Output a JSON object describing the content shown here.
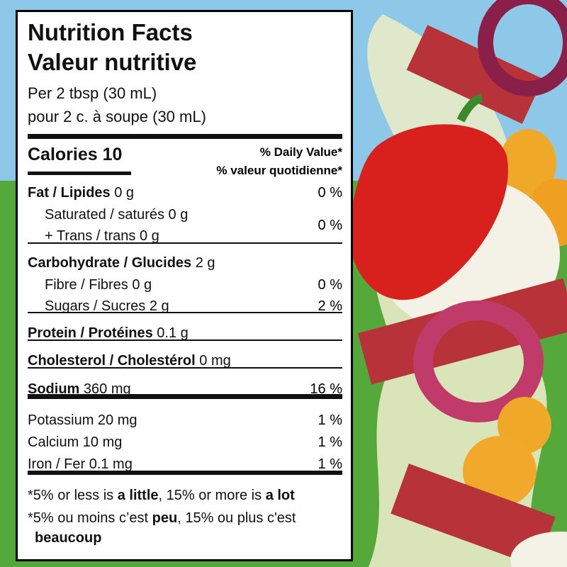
{
  "header": {
    "title": [
      "Nutrition Facts",
      "Valeur nutritive"
    ],
    "serving": [
      "Per 2 tbsp (30 mL)",
      "pour 2 c. à soupe (30 mL)"
    ]
  },
  "calories": {
    "label": "Calories 10",
    "daily_value": [
      "% Daily Value*",
      "% valeur quotidienne*"
    ]
  },
  "rows": [
    {
      "name": "Fat / Lipides",
      "amount": "0 g",
      "dv": "0 %"
    },
    {
      "sub": [
        "Saturated / saturés 0 g",
        "+ Trans / trans 0 g"
      ],
      "dv": "0 %"
    },
    {
      "name": "Carbohydrate / Glucides",
      "amount": "2 g"
    },
    {
      "sub": [
        "Fibre / Fibres 0 g"
      ],
      "dv": "0 %"
    },
    {
      "sub": [
        "Sugars / Sucres 2 g"
      ],
      "dv": "2 %"
    },
    {
      "name": "Protein / Protéines",
      "amount": "0.1 g"
    },
    {
      "name": "Cholesterol / Cholestérol",
      "amount": "0 mg"
    },
    {
      "name": "Sodium",
      "amount": "360 mg",
      "dv": "16 %"
    },
    {
      "plain": "Potassium 20 mg",
      "dv": "1 %"
    },
    {
      "plain": "Calcium 10 mg",
      "dv": "1 %"
    },
    {
      "plain": "Iron / Fer 0.1 mg",
      "dv": "1 %"
    }
  ],
  "footnote": [
    [
      "*5% or less is ",
      "a little",
      ", 15% or more is ",
      "a lot"
    ],
    [
      "*5% ou moins c’est ",
      "peu",
      ", 15% ou plus c'est"
    ],
    [
      "beaucoup"
    ]
  ]
}
